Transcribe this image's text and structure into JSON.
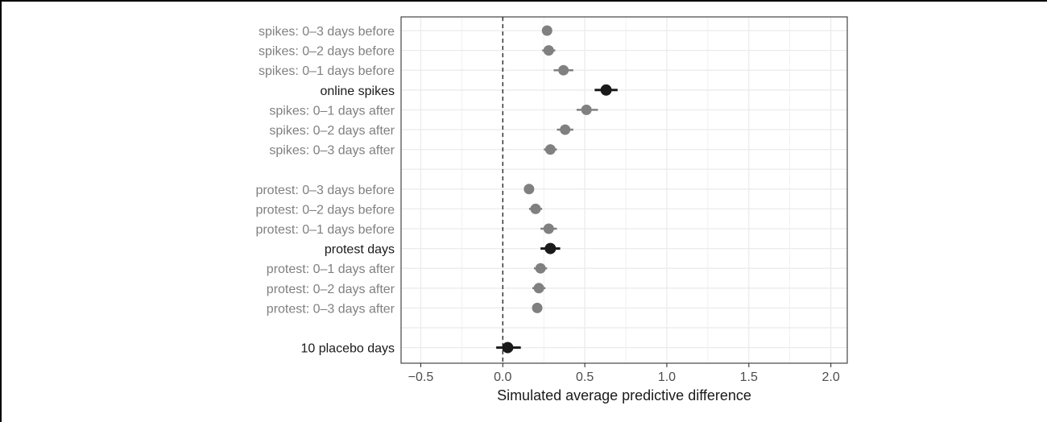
{
  "chart_data": {
    "type": "scatter",
    "subtype": "dot-and-whisker",
    "title": "",
    "xlabel": "Simulated average predictive difference",
    "ylabel": "",
    "xlim": [
      -0.62,
      2.1
    ],
    "xticks": [
      -0.5,
      0.0,
      0.5,
      1.0,
      1.5,
      2.0
    ],
    "xtick_labels": [
      "−0.5",
      "0.0",
      "0.5",
      "1.0",
      "1.5",
      "2.0"
    ],
    "reference_line": {
      "x": 0,
      "style": "dashed"
    },
    "grid": true,
    "colors": {
      "main": "#1a1a1a",
      "secondary": "#808080",
      "grid": "#ebebeb",
      "border": "#333333"
    },
    "rows": [
      {
        "label": "spikes: 0–3 days before",
        "estimate": 0.27,
        "lower": 0.24,
        "upper": 0.3,
        "highlight": false
      },
      {
        "label": "spikes: 0–2 days before",
        "estimate": 0.28,
        "lower": 0.24,
        "upper": 0.32,
        "highlight": false
      },
      {
        "label": "spikes: 0–1 days before",
        "estimate": 0.37,
        "lower": 0.31,
        "upper": 0.43,
        "highlight": false
      },
      {
        "label": "online spikes",
        "estimate": 0.63,
        "lower": 0.56,
        "upper": 0.7,
        "highlight": true
      },
      {
        "label": "spikes: 0–1 days after",
        "estimate": 0.51,
        "lower": 0.45,
        "upper": 0.58,
        "highlight": false
      },
      {
        "label": "spikes: 0–2 days after",
        "estimate": 0.38,
        "lower": 0.33,
        "upper": 0.43,
        "highlight": false
      },
      {
        "label": "spikes: 0–3 days after",
        "estimate": 0.29,
        "lower": 0.25,
        "upper": 0.33,
        "highlight": false
      },
      null,
      {
        "label": "protest: 0–3 days before",
        "estimate": 0.16,
        "lower": 0.13,
        "upper": 0.19,
        "highlight": false
      },
      {
        "label": "protest: 0–2 days before",
        "estimate": 0.2,
        "lower": 0.16,
        "upper": 0.24,
        "highlight": false
      },
      {
        "label": "protest: 0–1 days before",
        "estimate": 0.28,
        "lower": 0.23,
        "upper": 0.33,
        "highlight": false
      },
      {
        "label": "protest days",
        "estimate": 0.29,
        "lower": 0.23,
        "upper": 0.35,
        "highlight": true
      },
      {
        "label": "protest: 0–1 days after",
        "estimate": 0.23,
        "lower": 0.19,
        "upper": 0.27,
        "highlight": false
      },
      {
        "label": "protest: 0–2 days after",
        "estimate": 0.22,
        "lower": 0.18,
        "upper": 0.26,
        "highlight": false
      },
      {
        "label": "protest: 0–3 days after",
        "estimate": 0.21,
        "lower": 0.18,
        "upper": 0.24,
        "highlight": false
      },
      null,
      {
        "label": "10 placebo days",
        "estimate": 0.03,
        "lower": -0.04,
        "upper": 0.11,
        "highlight": true
      }
    ]
  }
}
